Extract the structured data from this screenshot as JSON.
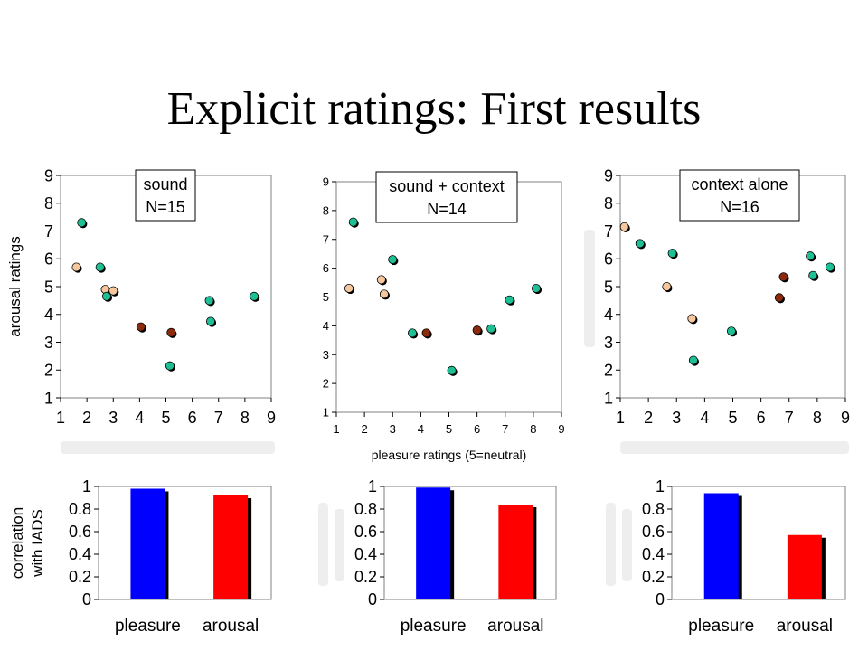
{
  "title": "Explicit ratings: First results",
  "colors": {
    "teal": "#1fbf95",
    "peach": "#f6c79c",
    "brown": "#8b2a0c",
    "blue": "#0000ff",
    "red": "#ff0000",
    "shadow": "#000000"
  },
  "chart_data": [
    {
      "id": "scatter-sound",
      "type": "scatter",
      "annotation": [
        "sound",
        "N=15"
      ],
      "xlabel": "",
      "ylabel": "arousal ratings",
      "xlim": [
        1,
        9
      ],
      "ylim": [
        1,
        9
      ],
      "xticks": [
        "1",
        "2",
        "3",
        "4",
        "5",
        "6",
        "7",
        "8",
        "9"
      ],
      "yticks": [
        "1",
        "2",
        "3",
        "4",
        "5",
        "6",
        "7",
        "8",
        "9"
      ],
      "points": [
        {
          "x": 1.6,
          "y": 5.7,
          "color": "peach"
        },
        {
          "x": 1.8,
          "y": 7.3,
          "color": "teal"
        },
        {
          "x": 2.5,
          "y": 5.7,
          "color": "teal"
        },
        {
          "x": 2.7,
          "y": 4.9,
          "color": "peach"
        },
        {
          "x": 2.75,
          "y": 4.65,
          "color": "teal"
        },
        {
          "x": 3.0,
          "y": 4.85,
          "color": "peach"
        },
        {
          "x": 4.05,
          "y": 3.55,
          "color": "brown"
        },
        {
          "x": 5.2,
          "y": 3.35,
          "color": "brown"
        },
        {
          "x": 5.15,
          "y": 2.15,
          "color": "teal"
        },
        {
          "x": 6.65,
          "y": 4.5,
          "color": "teal"
        },
        {
          "x": 6.7,
          "y": 3.75,
          "color": "teal"
        },
        {
          "x": 8.35,
          "y": 4.65,
          "color": "teal"
        }
      ]
    },
    {
      "id": "scatter-sound-context",
      "type": "scatter",
      "annotation": [
        "sound + context",
        "N=14"
      ],
      "xlabel": "pleasure ratings (5=neutral)",
      "ylabel": "",
      "xlim": [
        1,
        9
      ],
      "ylim": [
        1,
        9
      ],
      "xticks": [
        "1",
        "2",
        "3",
        "4",
        "5",
        "6",
        "7",
        "8",
        "9"
      ],
      "yticks": [
        "1",
        "2",
        "3",
        "4",
        "5",
        "6",
        "7",
        "8",
        "9"
      ],
      "points": [
        {
          "x": 1.45,
          "y": 5.3,
          "color": "peach"
        },
        {
          "x": 1.6,
          "y": 7.6,
          "color": "teal"
        },
        {
          "x": 2.6,
          "y": 5.6,
          "color": "peach"
        },
        {
          "x": 2.7,
          "y": 5.1,
          "color": "peach"
        },
        {
          "x": 3.0,
          "y": 6.3,
          "color": "teal"
        },
        {
          "x": 3.7,
          "y": 3.75,
          "color": "teal"
        },
        {
          "x": 4.2,
          "y": 3.75,
          "color": "brown"
        },
        {
          "x": 5.1,
          "y": 2.45,
          "color": "teal"
        },
        {
          "x": 6.0,
          "y": 3.85,
          "color": "brown"
        },
        {
          "x": 6.5,
          "y": 3.9,
          "color": "teal"
        },
        {
          "x": 7.15,
          "y": 4.9,
          "color": "teal"
        },
        {
          "x": 8.1,
          "y": 5.3,
          "color": "teal"
        }
      ]
    },
    {
      "id": "scatter-context-alone",
      "type": "scatter",
      "annotation": [
        "context alone",
        "N=16"
      ],
      "xlabel": "",
      "ylabel": "",
      "xlim": [
        1,
        9
      ],
      "ylim": [
        1,
        9
      ],
      "xticks": [
        "1",
        "2",
        "3",
        "4",
        "5",
        "6",
        "7",
        "8",
        "9"
      ],
      "yticks": [
        "1",
        "2",
        "3",
        "4",
        "5",
        "6",
        "7",
        "8",
        "9"
      ],
      "points": [
        {
          "x": 1.15,
          "y": 7.15,
          "color": "peach"
        },
        {
          "x": 1.7,
          "y": 6.55,
          "color": "teal"
        },
        {
          "x": 2.65,
          "y": 5.0,
          "color": "peach"
        },
        {
          "x": 2.85,
          "y": 6.2,
          "color": "teal"
        },
        {
          "x": 3.55,
          "y": 3.85,
          "color": "peach"
        },
        {
          "x": 3.6,
          "y": 2.35,
          "color": "teal"
        },
        {
          "x": 4.95,
          "y": 3.4,
          "color": "teal"
        },
        {
          "x": 6.65,
          "y": 4.6,
          "color": "brown"
        },
        {
          "x": 6.8,
          "y": 5.35,
          "color": "brown"
        },
        {
          "x": 7.75,
          "y": 6.1,
          "color": "teal"
        },
        {
          "x": 7.85,
          "y": 5.4,
          "color": "teal"
        },
        {
          "x": 8.45,
          "y": 5.7,
          "color": "teal"
        }
      ]
    },
    {
      "id": "bars-sound",
      "type": "bar",
      "ylabel": [
        "correlation",
        "with IADS"
      ],
      "ylim": [
        0,
        1
      ],
      "yticks": [
        "0",
        "0.2",
        "0.4",
        "0.6",
        "0.8",
        "1"
      ],
      "categories": [
        "pleasure",
        "arousal"
      ],
      "values": [
        0.98,
        0.92
      ],
      "colors": [
        "blue",
        "red"
      ]
    },
    {
      "id": "bars-sound-context",
      "type": "bar",
      "ylabel": [],
      "ylim": [
        0,
        1
      ],
      "yticks": [
        "0",
        "0.2",
        "0.4",
        "0.6",
        "0.8",
        "1"
      ],
      "categories": [
        "pleasure",
        "arousal"
      ],
      "values": [
        0.99,
        0.84
      ],
      "colors": [
        "blue",
        "red"
      ]
    },
    {
      "id": "bars-context-alone",
      "type": "bar",
      "ylabel": [],
      "ylim": [
        0,
        1
      ],
      "yticks": [
        "0",
        "0.2",
        "0.4",
        "0.6",
        "0.8",
        "1"
      ],
      "categories": [
        "pleasure",
        "arousal"
      ],
      "values": [
        0.94,
        0.57
      ],
      "colors": [
        "blue",
        "red"
      ]
    }
  ]
}
